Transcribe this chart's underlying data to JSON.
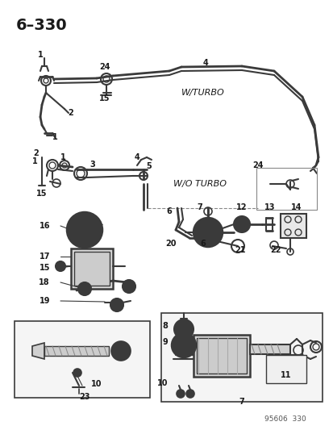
{
  "background_color": "#ffffff",
  "figure_width": 4.14,
  "figure_height": 5.33,
  "dpi": 100,
  "page_id": "6–330",
  "footer": "95606  330",
  "w_turbo": "W/TURBO",
  "wo_turbo": "W/O TURBO",
  "line_color": "#3a3a3a",
  "text_color": "#1a1a1a",
  "label_fontsize": 7.0,
  "title_fontsize": 14
}
